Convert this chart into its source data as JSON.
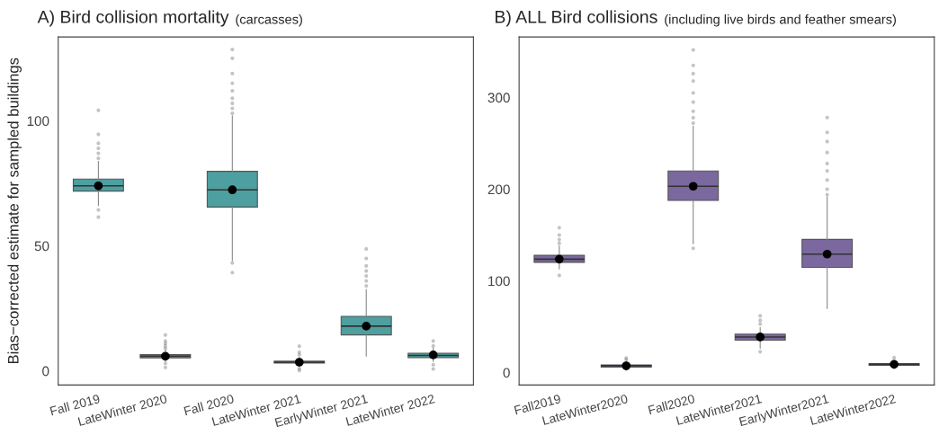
{
  "chart_data": [
    {
      "type": "box",
      "title": "A) Bird collision mortality",
      "subtitle": "(carcasses)",
      "ylabel": "Bias−corrected estimate for sampled buildings",
      "color": "#4e9fa0",
      "categories": [
        "Fall 2019",
        "LateWinter 2020",
        "Fall 2020",
        "LateWinter 2021",
        "EarlyWinter 2021",
        "LateWinter 2022"
      ],
      "ylim": [
        -5.6,
        133.5
      ],
      "yticks": [
        0,
        50,
        100
      ],
      "grid": false,
      "boxes": [
        {
          "low": 66.1,
          "q1": 71.9,
          "median": 74.0,
          "q3": 76.7,
          "high": 83.8,
          "mean": 74.0,
          "outliers": [
            85,
            87,
            89,
            91,
            94.6,
            104.2,
            64.4,
            61.5
          ]
        },
        {
          "low": 3.8,
          "q1": 5.2,
          "median": 5.9,
          "q3": 6.5,
          "high": 8.4,
          "mean": 5.9,
          "outliers": [
            9,
            10,
            11,
            12,
            14.4,
            3,
            1.4
          ]
        },
        {
          "low": 44.1,
          "q1": 65.5,
          "median": 72.4,
          "q3": 79.8,
          "high": 102.0,
          "mean": 72.4,
          "outliers": [
            103,
            105,
            107,
            109,
            112,
            115,
            118.9,
            125,
            128.5,
            43.2,
            39.3
          ]
        },
        {
          "low": 1.8,
          "q1": 3.2,
          "median": 3.5,
          "q3": 3.9,
          "high": 5.5,
          "mean": 3.5,
          "outliers": [
            6.5,
            7.5,
            9.9,
            1.0,
            0.2
          ]
        },
        {
          "low": 5.9,
          "q1": 14.4,
          "median": 17.9,
          "q3": 21.8,
          "high": 32.6,
          "mean": 17.9,
          "outliers": [
            34,
            36,
            38,
            40,
            42,
            45,
            48.8
          ]
        },
        {
          "low": 3.8,
          "q1": 5.3,
          "median": 6.2,
          "q3": 7.1,
          "high": 9.1,
          "mean": 6.4,
          "outliers": [
            10,
            12.0,
            2.5,
            0.8
          ]
        }
      ]
    },
    {
      "type": "box",
      "title": "B) ALL Bird collisions",
      "subtitle": "(including live birds and feather smears)",
      "color": "#7b689e",
      "categories": [
        "Fall2019",
        "LateWinter2020",
        "Fall2020",
        "LateWinter2021",
        "EarlyWinter2021",
        "LateWinter2022"
      ],
      "ylim": [
        -13.5,
        366
      ],
      "yticks": [
        0,
        100,
        200,
        300
      ],
      "grid": false,
      "boxes": [
        {
          "low": 113.1,
          "q1": 120.2,
          "median": 123.7,
          "q3": 127.9,
          "high": 138.1,
          "mean": 123.7,
          "outliers": [
            141,
            145,
            150,
            158,
            106
          ]
        },
        {
          "low": 2.6,
          "q1": 6.1,
          "median": 7.5,
          "q3": 8.3,
          "high": 12.2,
          "mean": 7.4,
          "outliers": [
            14,
            16
          ]
        },
        {
          "low": 140.4,
          "q1": 187.8,
          "median": 203.2,
          "q3": 219.9,
          "high": 268.6,
          "mean": 203.2,
          "outliers": [
            272,
            278,
            285,
            295,
            305,
            318,
            326,
            335,
            351.9,
            135.6
          ]
        },
        {
          "low": 26.6,
          "q1": 35.3,
          "median": 38.8,
          "q3": 42.0,
          "high": 49.0,
          "mean": 38.8,
          "outliers": [
            53,
            57,
            61.9,
            22.8
          ]
        },
        {
          "low": 69.9,
          "q1": 114.7,
          "median": 129.2,
          "q3": 145.2,
          "high": 191.7,
          "mean": 129.2,
          "outliers": [
            194,
            200,
            210,
            220,
            228,
            240,
            252,
            262,
            278.2
          ]
        },
        {
          "low": 4.2,
          "q1": 8.0,
          "median": 9.0,
          "q3": 9.9,
          "high": 13.8,
          "mean": 9.0,
          "outliers": [
            16.3
          ]
        }
      ]
    }
  ]
}
